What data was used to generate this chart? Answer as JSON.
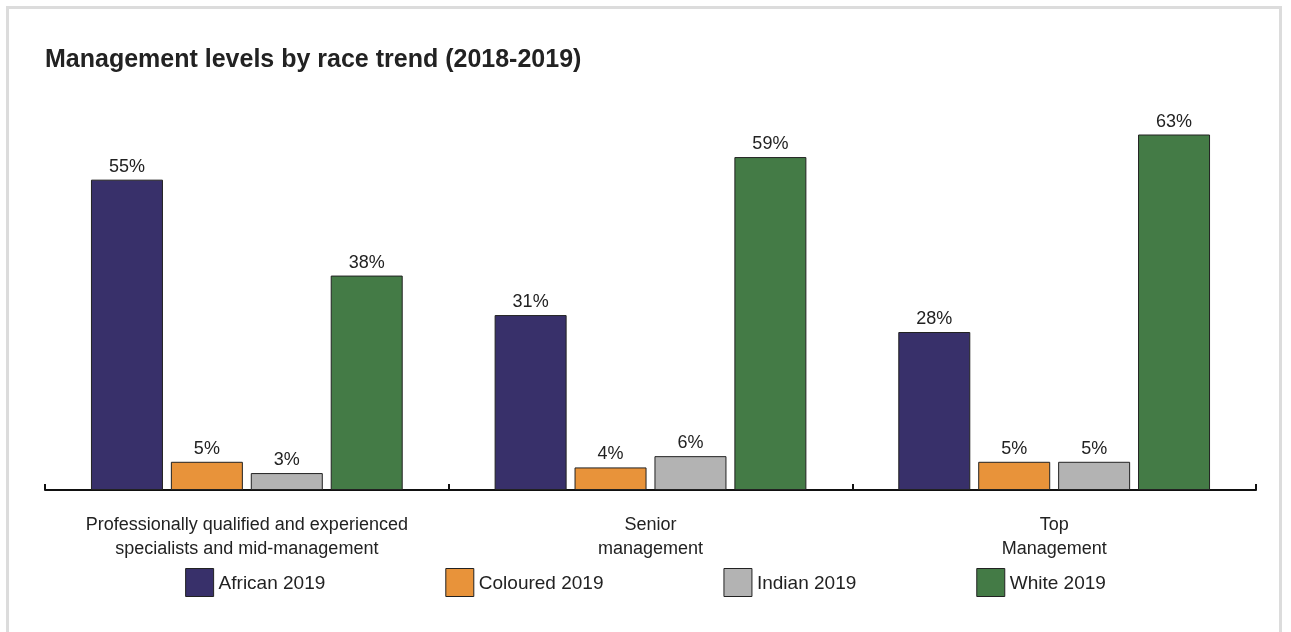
{
  "chart_data": {
    "type": "bar",
    "title": "Management levels by race trend (2018-2019)",
    "categories": [
      "Professionally qualified and experienced\nspecialists and mid-management",
      "Senior\nmanagement",
      "Top\nManagement"
    ],
    "series": [
      {
        "name": "African 2019",
        "color": "#38306a",
        "values": [
          55,
          31,
          28
        ],
        "value_labels": [
          "55%",
          "31%",
          "28%"
        ]
      },
      {
        "name": "Coloured 2019",
        "color": "#e8933a",
        "values": [
          5,
          4,
          5
        ],
        "value_labels": [
          "5%",
          "4%",
          "5%"
        ]
      },
      {
        "name": "Indian 2019",
        "color": "#b3b3b3",
        "values": [
          3,
          6,
          5
        ],
        "value_labels": [
          "3%",
          "6%",
          "5%"
        ]
      },
      {
        "name": "White 2019",
        "color": "#447b46",
        "values": [
          38,
          59,
          63
        ],
        "value_labels": [
          "38%",
          "59%",
          "63%"
        ]
      }
    ],
    "legend": "bottom"
  }
}
